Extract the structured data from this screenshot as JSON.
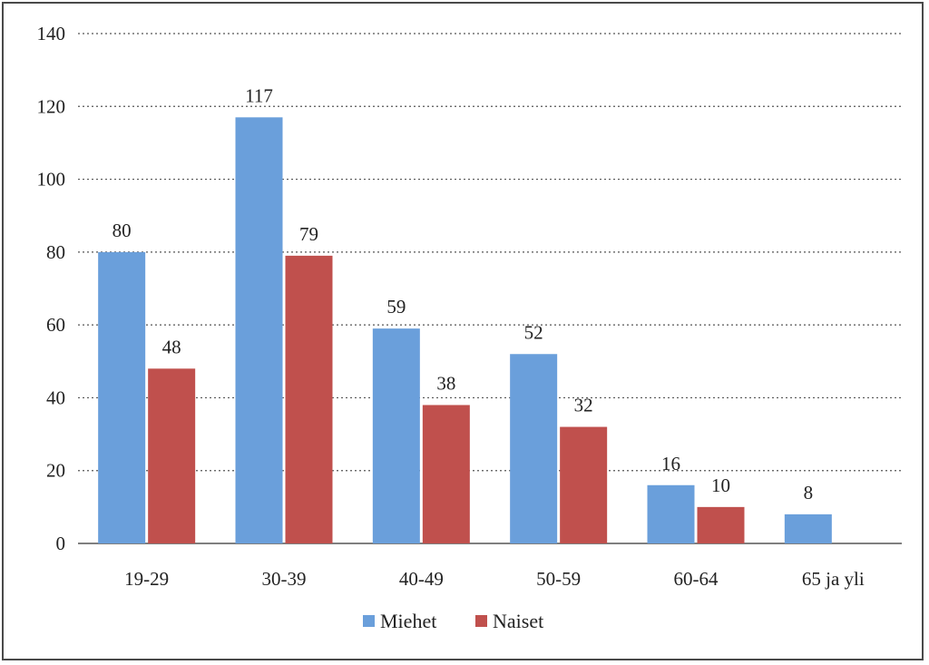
{
  "chart_data": {
    "type": "bar",
    "categories": [
      "19-29",
      "30-39",
      "40-49",
      "50-59",
      "60-64",
      "65 ja yli"
    ],
    "series": [
      {
        "name": "Miehet",
        "values": [
          80,
          117,
          59,
          52,
          16,
          8
        ],
        "color": "#6a9fdb"
      },
      {
        "name": "Naiset",
        "values": [
          48,
          79,
          38,
          32,
          10,
          null
        ],
        "color": "#c0504d"
      }
    ],
    "ylim": [
      0,
      140
    ],
    "yticks": [
      0,
      20,
      40,
      60,
      80,
      100,
      120,
      140
    ],
    "grid": true,
    "legend_position": "bottom",
    "title": "",
    "xlabel": "",
    "ylabel": ""
  }
}
